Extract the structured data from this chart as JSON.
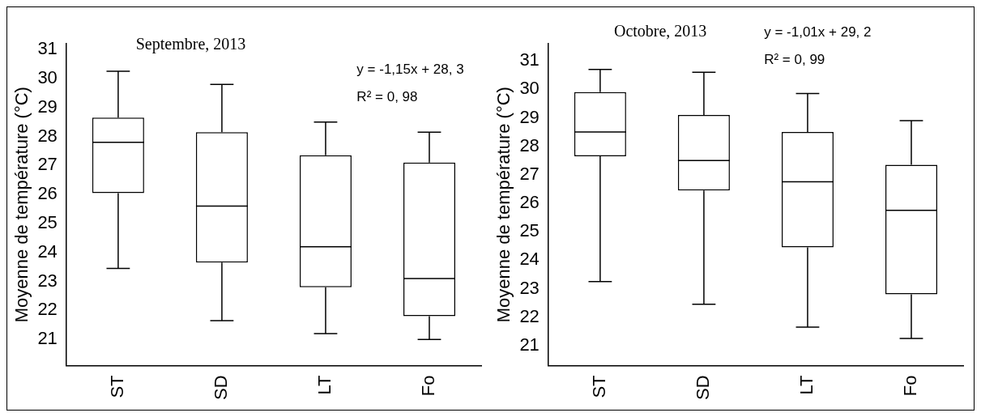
{
  "chart_data": [
    {
      "type": "box",
      "title": "Septembre, 2013",
      "ylabel": "Moyenne de température (°C)",
      "categories": [
        "ST",
        "SD",
        "LT",
        "Fo"
      ],
      "boxes": [
        {
          "low": 23.45,
          "q1": 26.05,
          "median": 27.8,
          "q3": 28.65,
          "high": 30.25
        },
        {
          "low": 21.65,
          "q1": 23.65,
          "median": 25.6,
          "q3": 28.15,
          "high": 29.8
        },
        {
          "low": 21.2,
          "q1": 22.8,
          "median": 24.2,
          "q3": 27.35,
          "high": 28.5
        },
        {
          "low": 21.0,
          "q1": 21.8,
          "median": 23.1,
          "q3": 27.1,
          "high": 28.15
        }
      ],
      "color": "#000000",
      "ylim": [
        20.1,
        31.2
      ],
      "yticks": [
        21,
        22,
        23,
        24,
        25,
        26,
        27,
        28,
        29,
        30,
        31
      ],
      "grid": false,
      "annotations": [
        "y = -1,15x + 28, 3",
        "R² = 0, 98"
      ]
    },
    {
      "type": "box",
      "title": "Octobre, 2013",
      "ylabel": "Moyenne de température (°C)",
      "categories": [
        "ST",
        "SD",
        "LT",
        "Fo"
      ],
      "boxes": [
        {
          "low": 23.25,
          "q1": 27.65,
          "median": 28.5,
          "q3": 29.9,
          "high": 30.7
        },
        {
          "low": 22.45,
          "q1": 26.45,
          "median": 27.5,
          "q3": 29.1,
          "high": 30.6
        },
        {
          "low": 21.65,
          "q1": 24.45,
          "median": 26.75,
          "q3": 28.5,
          "high": 29.85
        },
        {
          "low": 21.25,
          "q1": 22.8,
          "median": 25.75,
          "q3": 27.35,
          "high": 28.9
        }
      ],
      "color": "#000000",
      "ylim": [
        20.3,
        31.6
      ],
      "yticks": [
        21,
        22,
        23,
        24,
        25,
        26,
        27,
        28,
        29,
        30,
        31
      ],
      "grid": false,
      "annotations": [
        "y = -1,01x + 29, 2",
        "R² = 0, 99"
      ]
    }
  ]
}
